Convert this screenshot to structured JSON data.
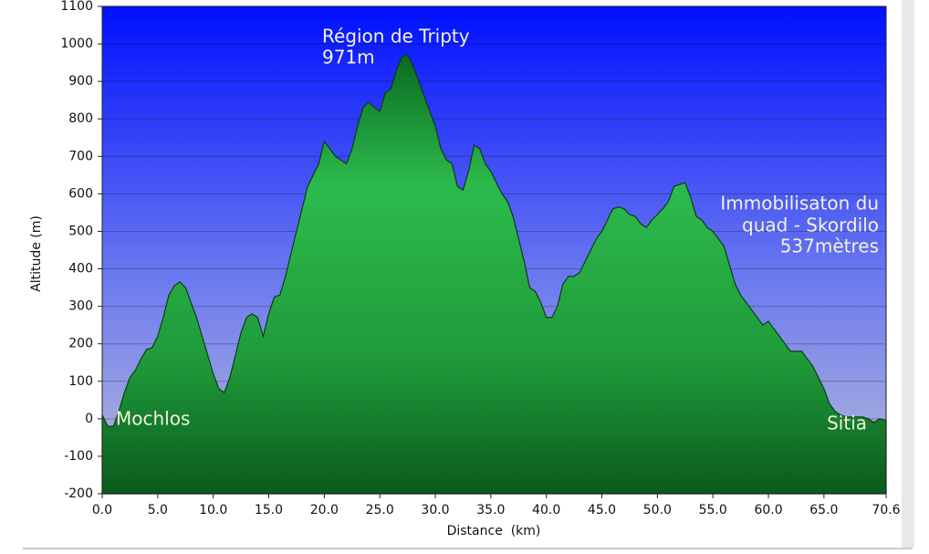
{
  "chart_data": {
    "type": "area",
    "x_label": "Distance  (km)",
    "y_label": "Altitude (m)",
    "x": [
      0,
      0.5,
      1,
      1.5,
      2,
      2.5,
      3,
      3.5,
      4,
      4.5,
      5,
      5.5,
      6,
      6.5,
      7,
      7.5,
      8,
      8.5,
      9,
      9.5,
      10,
      10.5,
      11,
      11.5,
      12,
      12.5,
      13,
      13.5,
      14,
      14.5,
      15,
      15.5,
      16,
      16.5,
      17,
      17.5,
      18,
      18.5,
      19,
      19.5,
      20,
      20.5,
      21,
      21.5,
      22,
      22.5,
      23,
      23.5,
      24,
      24.5,
      25,
      25.5,
      26,
      26.5,
      27,
      27.5,
      28,
      28.5,
      29,
      29.5,
      30,
      30.5,
      31,
      31.5,
      32,
      32.5,
      33,
      33.5,
      34,
      34.5,
      35,
      35.5,
      36,
      36.5,
      37,
      37.5,
      38,
      38.5,
      39,
      39.5,
      40,
      40.5,
      41,
      41.5,
      42,
      42.5,
      43,
      43.5,
      44,
      44.5,
      45,
      45.5,
      46,
      46.5,
      47,
      47.5,
      48,
      48.5,
      49,
      49.5,
      50,
      50.5,
      51,
      51.5,
      52,
      52.5,
      53,
      53.5,
      54,
      54.5,
      55,
      55.5,
      56,
      56.5,
      57,
      57.5,
      58,
      58.5,
      59,
      59.5,
      60,
      60.5,
      61,
      61.5,
      62,
      62.5,
      63,
      63.5,
      64,
      64.5,
      65,
      65.5,
      66,
      66.5,
      67,
      67.5,
      68,
      68.5,
      69,
      69.5,
      70,
      70.6
    ],
    "values": [
      10,
      -20,
      -20,
      20,
      70,
      110,
      130,
      160,
      185,
      190,
      220,
      270,
      330,
      355,
      365,
      350,
      310,
      270,
      220,
      170,
      120,
      80,
      70,
      110,
      170,
      230,
      270,
      280,
      270,
      220,
      280,
      325,
      330,
      380,
      440,
      500,
      560,
      620,
      650,
      680,
      740,
      720,
      700,
      690,
      680,
      720,
      780,
      830,
      845,
      830,
      820,
      870,
      880,
      930,
      965,
      971,
      940,
      900,
      860,
      820,
      780,
      720,
      690,
      680,
      620,
      610,
      660,
      730,
      720,
      680,
      660,
      630,
      600,
      580,
      540,
      480,
      420,
      350,
      340,
      310,
      270,
      270,
      300,
      360,
      380,
      380,
      390,
      420,
      450,
      480,
      500,
      530,
      560,
      565,
      560,
      545,
      540,
      520,
      510,
      530,
      545,
      560,
      580,
      620,
      625,
      630,
      590,
      540,
      530,
      510,
      500,
      480,
      460,
      410,
      360,
      330,
      310,
      290,
      270,
      250,
      260,
      240,
      220,
      200,
      180,
      180,
      180,
      160,
      140,
      110,
      80,
      40,
      20,
      10,
      5,
      5,
      5,
      5,
      0,
      -10,
      0,
      -5
    ],
    "color": "#1f9a3a",
    "xlim": [
      0,
      70.6
    ],
    "ylim": [
      -200,
      1100
    ],
    "xticks": [
      {
        "value": 0,
        "label": "0.0"
      },
      {
        "value": 5,
        "label": "5.0"
      },
      {
        "value": 10,
        "label": "10.0"
      },
      {
        "value": 15,
        "label": "15.0"
      },
      {
        "value": 20,
        "label": "20.0"
      },
      {
        "value": 25,
        "label": "25.0"
      },
      {
        "value": 30,
        "label": "30.0"
      },
      {
        "value": 35,
        "label": "35.0"
      },
      {
        "value": 40,
        "label": "40.0"
      },
      {
        "value": 45,
        "label": "45.0"
      },
      {
        "value": 50,
        "label": "50.0"
      },
      {
        "value": 55,
        "label": "55.0"
      },
      {
        "value": 60,
        "label": "60.0"
      },
      {
        "value": 65,
        "label": "65.0"
      },
      {
        "value": 70.6,
        "label": "70.6"
      }
    ],
    "yticks": [
      -200,
      -100,
      0,
      100,
      200,
      300,
      400,
      500,
      600,
      700,
      800,
      900,
      1000,
      1100
    ],
    "grid": true,
    "annotations": [
      "Région de Tripty",
      "971m",
      "Immobilisaton du",
      "quad - Skordilo",
      "537mètres",
      "Mochlos",
      "Sitia"
    ]
  }
}
